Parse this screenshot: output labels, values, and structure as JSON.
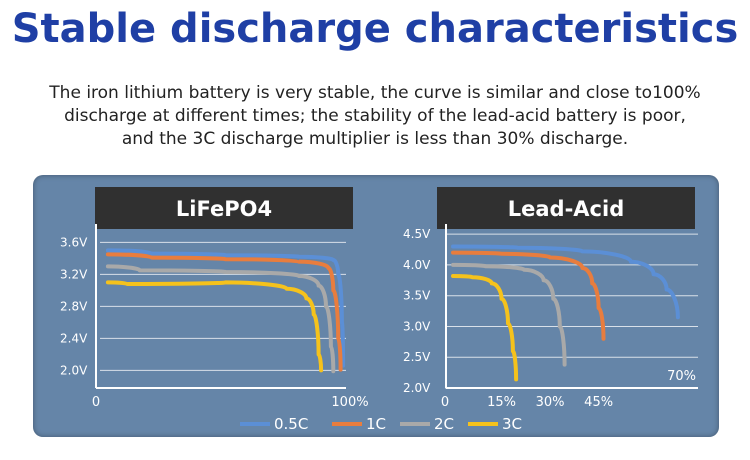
{
  "title": "Stable discharge characteristics",
  "description": [
    "The iron lithium battery is very stable, the curve is similar and close to100%",
    "discharge at different times; the stability of the lead-acid battery is poor,",
    "and the 3C discharge multiplier is less than 30% discharge."
  ],
  "colors": {
    "title": "#1f3fa5",
    "panel": "#6585a8",
    "header": "#303030",
    "0.5C": "#5b8fd6",
    "1C": "#e87d3e",
    "2C": "#a9a9a9",
    "3C": "#f5c21c"
  },
  "legend": [
    {
      "name": "0.5C",
      "color": "#5b8fd6"
    },
    {
      "name": "1C",
      "color": "#e87d3e"
    },
    {
      "name": "2C",
      "color": "#a9a9a9"
    },
    {
      "name": "3C",
      "color": "#f5c21c"
    }
  ],
  "chart_data": [
    {
      "type": "line",
      "title": "LiFePO4",
      "xlabel": "",
      "ylabel": "",
      "x_tick_labels": [
        "0",
        "100%"
      ],
      "y_tick_labels": [
        "3.6V",
        "3.2V",
        "2.8V",
        "2.4V",
        "2.0V"
      ],
      "xlim": [
        0,
        100
      ],
      "ylim": [
        1.78,
        3.78
      ],
      "y_ticks": [
        3.6,
        3.2,
        2.8,
        2.4,
        2.0
      ],
      "grid": true,
      "series": [
        {
          "name": "0.5C",
          "x": [
            2,
            20,
            50,
            80,
            94,
            96,
            97.5,
            98
          ],
          "y": [
            3.5,
            3.46,
            3.44,
            3.42,
            3.38,
            3.2,
            2.6,
            2.06
          ]
        },
        {
          "name": "1C",
          "x": [
            2,
            20,
            50,
            80,
            92,
            94,
            96,
            97
          ],
          "y": [
            3.45,
            3.41,
            3.39,
            3.36,
            3.28,
            3.0,
            2.4,
            2.01
          ]
        },
        {
          "name": "2C",
          "x": [
            2,
            15,
            50,
            80,
            88,
            91,
            93,
            94
          ],
          "y": [
            3.3,
            3.25,
            3.23,
            3.18,
            3.06,
            2.8,
            2.3,
            1.99
          ]
        },
        {
          "name": "3C",
          "x": [
            2,
            10,
            50,
            75,
            83,
            86,
            88,
            89
          ],
          "y": [
            3.1,
            3.08,
            3.1,
            3.02,
            2.9,
            2.7,
            2.2,
            2.0
          ]
        }
      ]
    },
    {
      "type": "line",
      "title": "Lead-Acid",
      "xlabel": "",
      "ylabel": "",
      "x_tick_labels": [
        "0",
        "15%",
        "30%",
        "45%"
      ],
      "x_ticks": [
        0,
        15,
        30,
        45
      ],
      "y_tick_labels": [
        "4.5V",
        "4.0V",
        "3.5V",
        "3.0V",
        "2.5V",
        "2.0V"
      ],
      "y_ticks": [
        4.5,
        4.0,
        3.5,
        3.0,
        2.5,
        2.0
      ],
      "xlim": [
        0,
        72
      ],
      "ylim": [
        2.0,
        4.6
      ],
      "grid": true,
      "annotation": "70%",
      "series": [
        {
          "name": "0.5C",
          "x": [
            0,
            20,
            40,
            55,
            62,
            66,
            69.5
          ],
          "y": [
            4.3,
            4.28,
            4.22,
            4.05,
            3.85,
            3.6,
            3.15
          ]
        },
        {
          "name": "1C",
          "x": [
            0,
            15,
            30,
            40,
            43,
            45,
            46.5
          ],
          "y": [
            4.2,
            4.18,
            4.12,
            3.95,
            3.7,
            3.3,
            2.8
          ]
        },
        {
          "name": "2C",
          "x": [
            0,
            10,
            22,
            28,
            31,
            33,
            34.5
          ],
          "y": [
            4.0,
            3.98,
            3.92,
            3.75,
            3.45,
            3.0,
            2.38
          ]
        },
        {
          "name": "3C",
          "x": [
            0,
            6,
            12,
            15,
            17,
            18.5,
            19.5
          ],
          "y": [
            3.82,
            3.8,
            3.7,
            3.45,
            3.05,
            2.6,
            2.14
          ]
        }
      ]
    }
  ]
}
